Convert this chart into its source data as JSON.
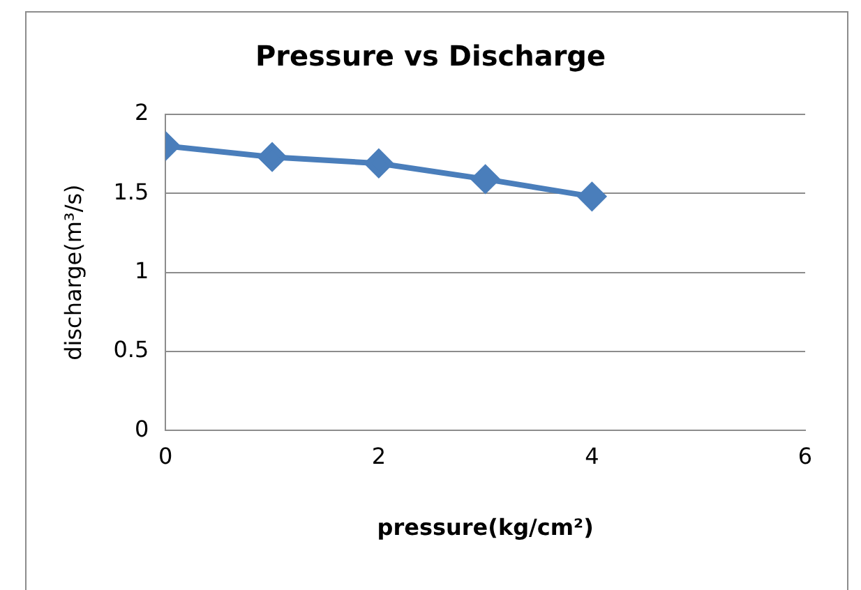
{
  "chart_data": {
    "type": "line",
    "title": "Pressure vs Discharge",
    "xlabel": "pressure(kg/cm²)",
    "ylabel": "discharge(m³/s)",
    "x": [
      0,
      1,
      2,
      3,
      4
    ],
    "series": [
      {
        "color": "#4a7ebb",
        "values": [
          1.8,
          1.73,
          1.69,
          1.59,
          1.48
        ]
      }
    ],
    "xlim": [
      0,
      6
    ],
    "xticks": [
      0,
      2,
      4,
      6
    ],
    "ylim": [
      0,
      2
    ],
    "yticks": [
      0,
      0.5,
      1,
      1.5,
      2
    ],
    "grid": "y",
    "legend": false,
    "marker": "diamond",
    "line_style": "solid"
  }
}
